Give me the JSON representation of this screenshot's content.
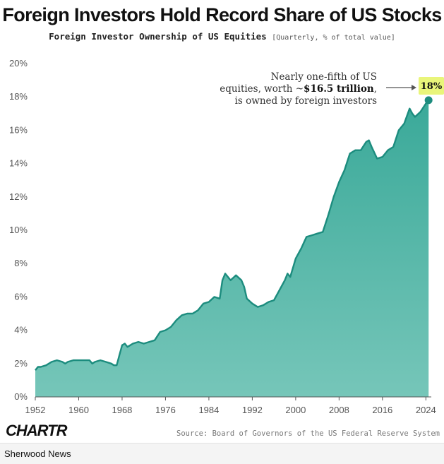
{
  "title": "Foreign Investors Hold Record Share of  US Stocks",
  "subtitle": {
    "main": "Foreign Investor Ownership of US Equities",
    "note": "[Quarterly, % of total value]"
  },
  "annotation": {
    "line1": "Nearly one-fifth of US",
    "line2_prefix": "equities, worth ~",
    "line2_bold": "$16.5 trillion",
    "line2_suffix": ",",
    "line3": "is owned by foreign investors"
  },
  "badge": "18%",
  "source": "Source: Board of Governors of the US Federal Reserve System",
  "logo": "CHARTR",
  "publisher": "Sherwood News",
  "colors": {
    "fill": "#3fae9f",
    "line": "#1c8c7e",
    "badge": "#e9f57a"
  },
  "chart_data": {
    "type": "area",
    "title": "Foreign Investor Ownership of US Equities",
    "xlabel": "",
    "ylabel": "",
    "xlim": [
      1952,
      2025
    ],
    "ylim": [
      0,
      20
    ],
    "x_ticks": [
      1952,
      1960,
      1968,
      1976,
      1984,
      1992,
      2000,
      2008,
      2016,
      2024
    ],
    "x_tick_labels": [
      "1952",
      "1960",
      "1968",
      "1976",
      "1984",
      "1992",
      "2000",
      "2008",
      "2016",
      "2024"
    ],
    "y_ticks": [
      0,
      2,
      4,
      6,
      8,
      10,
      12,
      14,
      16,
      18,
      20
    ],
    "y_tick_labels": [
      "0%",
      "2%",
      "4%",
      "6%",
      "8%",
      "10%",
      "12%",
      "14%",
      "16%",
      "18%",
      "20%"
    ],
    "grid": false,
    "series": [
      {
        "x": [
          1952,
          1952.5,
          1953,
          1954,
          1955,
          1956,
          1957,
          1957.5,
          1958,
          1959,
          1960,
          1961,
          1962,
          1962.5,
          1963,
          1964,
          1965,
          1966,
          1966.5,
          1967,
          1967.5,
          1968,
          1968.5,
          1969,
          1970,
          1971,
          1972,
          1973,
          1974,
          1975,
          1976,
          1977,
          1978,
          1979,
          1980,
          1981,
          1982,
          1983,
          1984,
          1985,
          1986,
          1986.5,
          1987,
          1988,
          1989,
          1990,
          1990.5,
          1991,
          1992,
          1993,
          1994,
          1995,
          1996,
          1997,
          1998,
          1998.5,
          1999,
          2000,
          2001,
          2002,
          2003,
          2004,
          2005,
          2006,
          2007,
          2008,
          2009,
          2010,
          2011,
          2012,
          2013,
          2013.5,
          2014,
          2015,
          2016,
          2017,
          2018,
          2019,
          2020,
          2021,
          2021.5,
          2022,
          2023,
          2024,
          2024.5
        ],
        "y": [
          1.6,
          1.8,
          1.8,
          1.9,
          2.1,
          2.2,
          2.1,
          2.0,
          2.1,
          2.2,
          2.2,
          2.2,
          2.2,
          2.0,
          2.1,
          2.2,
          2.1,
          2.0,
          1.9,
          1.9,
          2.5,
          3.1,
          3.2,
          3.0,
          3.2,
          3.3,
          3.2,
          3.3,
          3.4,
          3.9,
          4.0,
          4.2,
          4.6,
          4.9,
          5.0,
          5.0,
          5.2,
          5.6,
          5.7,
          6.0,
          5.9,
          7.0,
          7.4,
          7.0,
          7.3,
          7.0,
          6.6,
          5.9,
          5.6,
          5.4,
          5.5,
          5.7,
          5.8,
          6.4,
          7.0,
          7.4,
          7.2,
          8.3,
          8.9,
          9.6,
          9.7,
          9.8,
          9.9,
          10.9,
          12.0,
          12.9,
          13.6,
          14.6,
          14.8,
          14.8,
          15.3,
          15.4,
          15.0,
          14.3,
          14.4,
          14.8,
          15.0,
          16.0,
          16.4,
          17.3,
          17.0,
          16.8,
          17.1,
          17.6,
          17.8
        ]
      }
    ]
  }
}
